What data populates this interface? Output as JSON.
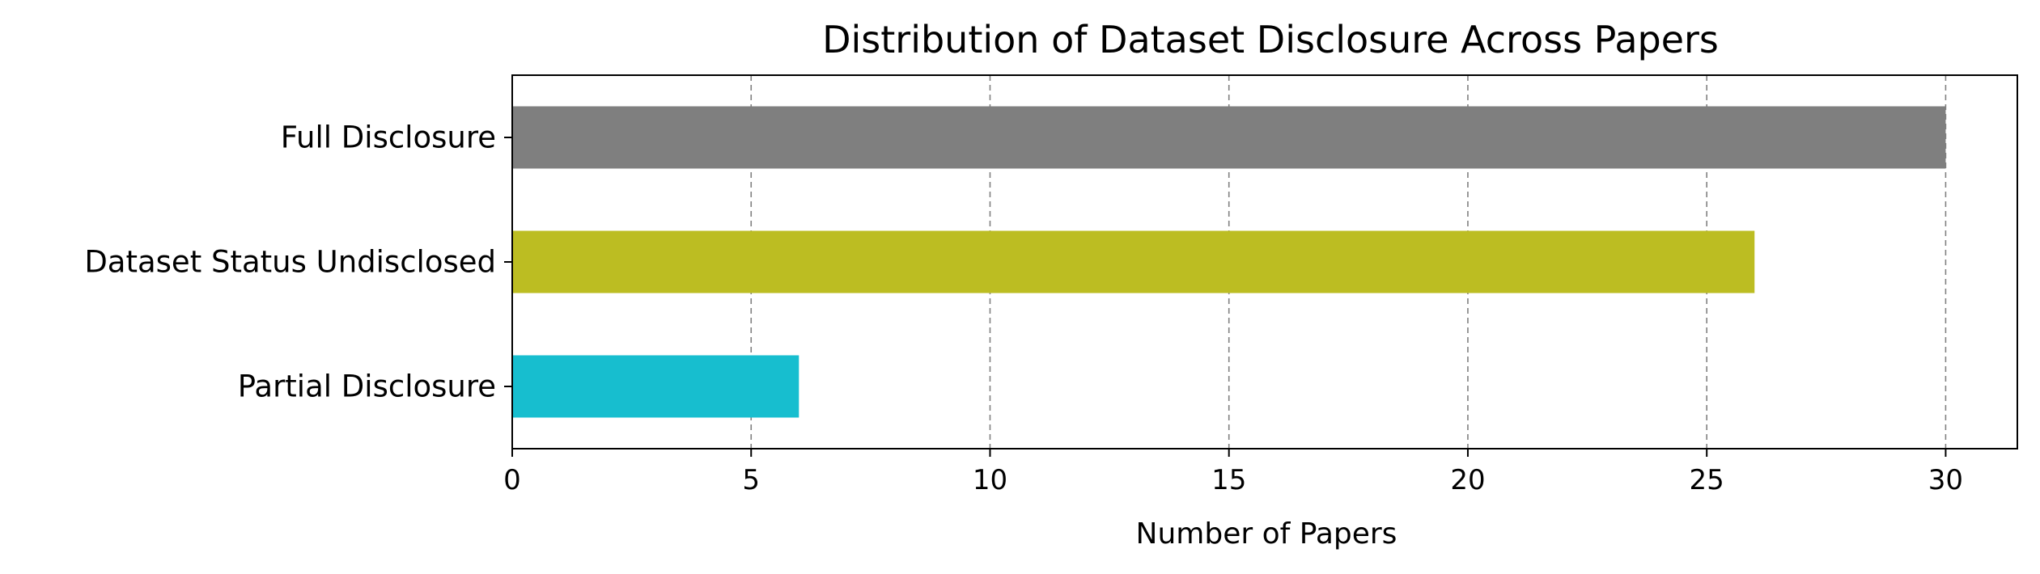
{
  "chart_data": {
    "type": "bar",
    "orientation": "horizontal",
    "title": "Distribution of Dataset Disclosure Across Papers",
    "xlabel": "Number of Papers",
    "ylabel": "",
    "categories": [
      "Partial Disclosure",
      "Dataset Status Undisclosed",
      "Full Disclosure"
    ],
    "values": [
      6,
      26,
      30
    ],
    "bar_colors": [
      "#17becf",
      "#bcbd22",
      "#7f7f7f"
    ],
    "xlim": [
      0,
      31.5
    ],
    "xticks": [
      0,
      5,
      10,
      15,
      20,
      25,
      30
    ],
    "xtick_labels": [
      "0",
      "5",
      "10",
      "15",
      "20",
      "25",
      "30"
    ],
    "grid": {
      "axis": "x",
      "style": "dashed",
      "color": "#808080"
    },
    "legend": "none"
  }
}
